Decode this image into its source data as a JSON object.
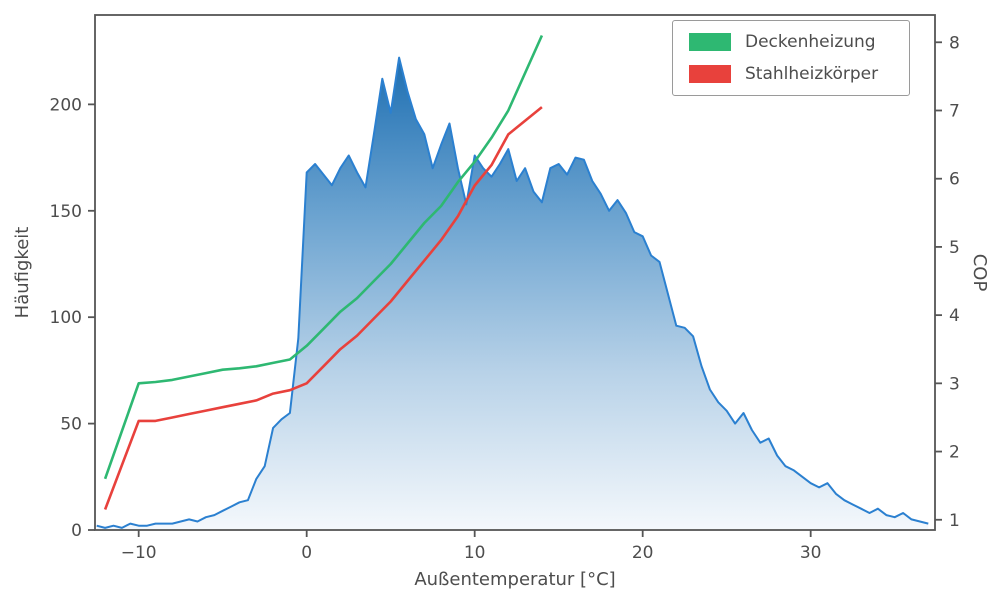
{
  "chart_data": {
    "type": "area",
    "title": "",
    "xlabel": "Außentemperatur [°C]",
    "ylabel": "Häufigkeit",
    "y2label": "COP",
    "xlim": [
      -12.6,
      37.4
    ],
    "ylim": [
      0,
      242
    ],
    "y2lim": [
      0.85,
      8.4
    ],
    "grid": false,
    "legend_position": "upper right",
    "x_tick_values": [
      -10,
      0,
      10,
      20,
      30
    ],
    "x_tick_labels": [
      "−10",
      "0",
      "10",
      "20",
      "30"
    ],
    "y_tick_values": [
      0,
      50,
      100,
      150,
      200
    ],
    "y_tick_labels": [
      "0",
      "50",
      "100",
      "150",
      "200"
    ],
    "y2_tick_values": [
      1,
      2,
      3,
      4,
      5,
      6,
      7,
      8
    ],
    "y2_tick_labels": [
      "1",
      "2",
      "3",
      "4",
      "5",
      "6",
      "7",
      "8"
    ],
    "histogram": {
      "name": "Häufigkeit",
      "line_color": "#2b80d0",
      "fill_gradient": [
        "#1e6fb2",
        "#6ba3d0",
        "#b8d2e8",
        "#f4f8fc"
      ],
      "x_start": -12.5,
      "x_step": 0.5,
      "values": [
        2,
        1,
        2,
        1,
        3,
        2,
        2,
        3,
        3,
        3,
        4,
        5,
        4,
        6,
        7,
        9,
        11,
        13,
        14,
        24,
        30,
        48,
        52,
        55,
        90,
        168,
        172,
        167,
        162,
        170,
        176,
        168,
        161,
        186,
        212,
        196,
        222,
        206,
        193,
        186,
        170,
        181,
        191,
        170,
        153,
        176,
        170,
        166,
        172,
        179,
        164,
        170,
        159,
        154,
        170,
        172,
        167,
        175,
        174,
        164,
        158,
        150,
        155,
        149,
        140,
        138,
        129,
        126,
        111,
        96,
        95,
        91,
        77,
        66,
        60,
        56,
        50,
        55,
        47,
        41,
        43,
        35,
        30,
        28,
        25,
        22,
        20,
        22,
        17,
        14,
        12,
        10,
        8,
        10,
        7,
        6,
        8,
        5,
        4,
        3
      ]
    },
    "series": [
      {
        "name": "Deckenheizung",
        "color": "#2eb872",
        "axis": "y2",
        "x": [
          -12,
          -11,
          -10,
          -9,
          -8,
          -7,
          -6,
          -5,
          -4,
          -3,
          -2,
          -1,
          0,
          1,
          2,
          3,
          4,
          5,
          6,
          7,
          8,
          9,
          10,
          11,
          12,
          13,
          14
        ],
        "values": [
          1.6,
          2.3,
          3.0,
          3.02,
          3.05,
          3.1,
          3.15,
          3.2,
          3.22,
          3.25,
          3.3,
          3.35,
          3.55,
          3.8,
          4.05,
          4.25,
          4.5,
          4.75,
          5.05,
          5.35,
          5.6,
          5.95,
          6.25,
          6.6,
          7.0,
          7.55,
          8.1
        ]
      },
      {
        "name": "Stahlheizkörper",
        "color": "#e8413c",
        "axis": "y2",
        "x": [
          -12,
          -11,
          -10,
          -9,
          -8,
          -7,
          -6,
          -5,
          -4,
          -3,
          -2,
          -1,
          0,
          1,
          2,
          3,
          4,
          5,
          6,
          7,
          8,
          9,
          10,
          11,
          12,
          13,
          14
        ],
        "values": [
          1.15,
          1.8,
          2.45,
          2.45,
          2.5,
          2.55,
          2.6,
          2.65,
          2.7,
          2.75,
          2.85,
          2.9,
          3.0,
          3.25,
          3.5,
          3.7,
          3.95,
          4.2,
          4.5,
          4.8,
          5.1,
          5.45,
          5.9,
          6.2,
          6.65,
          6.85,
          7.05
        ]
      }
    ],
    "style": {
      "text_color": "#4d4d4d",
      "spine_color": "#555555",
      "background": "#ffffff"
    }
  }
}
